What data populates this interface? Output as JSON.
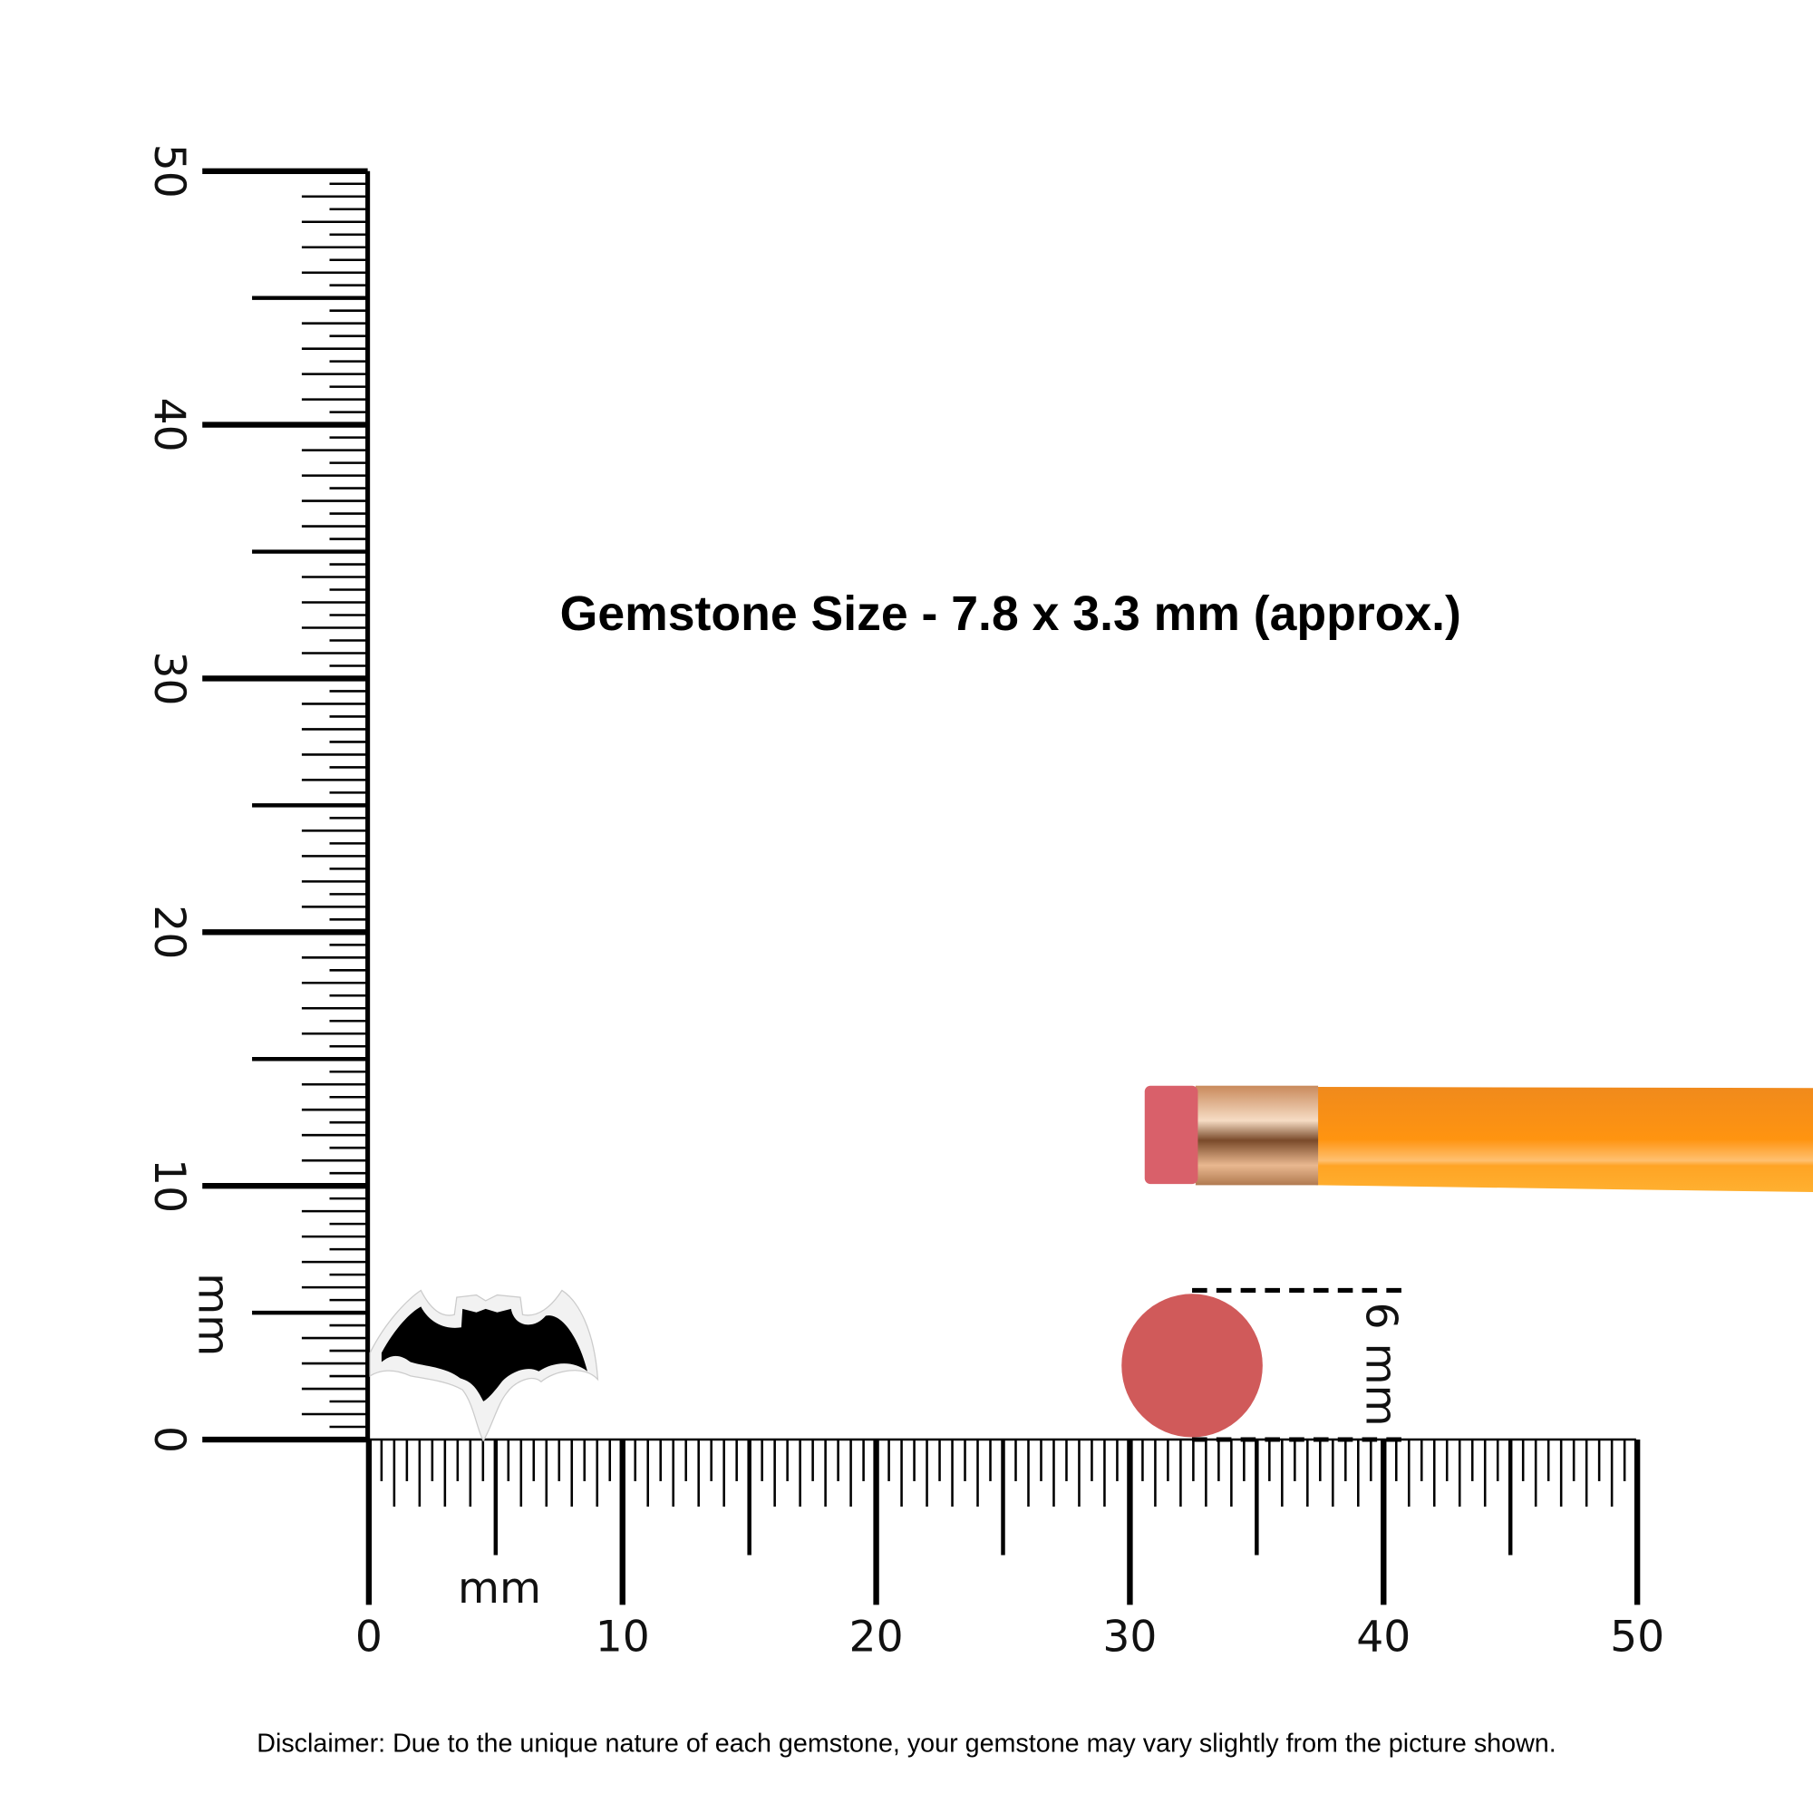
{
  "title": "Gemstone Size - 7.8 x 3.3 mm (approx.)",
  "disclaimer": "Disclaimer: Due to the unique nature of each gemstone, your gemstone may vary slightly from the picture shown.",
  "vertical_ruler": {
    "unit": "mm",
    "labels": [
      "0",
      "10",
      "20",
      "30",
      "40",
      "50"
    ],
    "max": 50
  },
  "horizontal_ruler": {
    "unit": "mm",
    "labels": [
      "0",
      "10",
      "20",
      "30",
      "40",
      "50"
    ],
    "max": 50
  },
  "reference": {
    "label": "6 mm",
    "color": "#d05a5a"
  },
  "colors": {
    "pencil_body": "#ff9410",
    "eraser": "#d9606a",
    "ferrule": "#d8a27a",
    "gem": "#000000"
  }
}
